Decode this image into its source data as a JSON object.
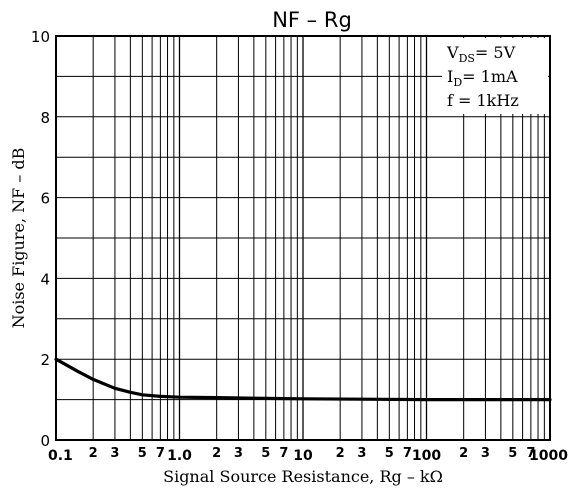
{
  "chart_data": {
    "type": "line",
    "title": "NF  –  Rg",
    "xlabel": "Signal Source Resistance, Rg  –  kΩ",
    "ylabel": "Noise Figure, NF  –  dB",
    "x_scale": "log",
    "xlim": [
      0.1,
      1000
    ],
    "ylim": [
      0,
      10
    ],
    "grid": true,
    "y_ticks": [
      "0",
      "2",
      "4",
      "6",
      "8",
      "10"
    ],
    "x_major_ticks": [
      {
        "value": 0.1,
        "label": "0.1"
      },
      {
        "value": 1,
        "label": "1.0"
      },
      {
        "value": 10,
        "label": "10"
      },
      {
        "value": 100,
        "label": "100"
      },
      {
        "value": 1000,
        "label": "1000"
      }
    ],
    "x_minor_tick_labels": [
      "2",
      "3",
      "5",
      "7"
    ],
    "conditions": {
      "vds": {
        "main": "V",
        "sub": "DS",
        "rest": "= 5V"
      },
      "id": {
        "main": "I",
        "sub": "D",
        "rest": "= 1mA"
      },
      "f": {
        "main": "f = 1kHz"
      }
    },
    "series": [
      {
        "x": [
          0.1,
          0.15,
          0.2,
          0.3,
          0.4,
          0.5,
          0.7,
          1.0,
          2,
          5,
          10,
          100,
          1000
        ],
        "y": [
          2.0,
          1.7,
          1.5,
          1.28,
          1.18,
          1.12,
          1.08,
          1.06,
          1.05,
          1.03,
          1.02,
          1.0,
          1.0
        ]
      }
    ]
  }
}
